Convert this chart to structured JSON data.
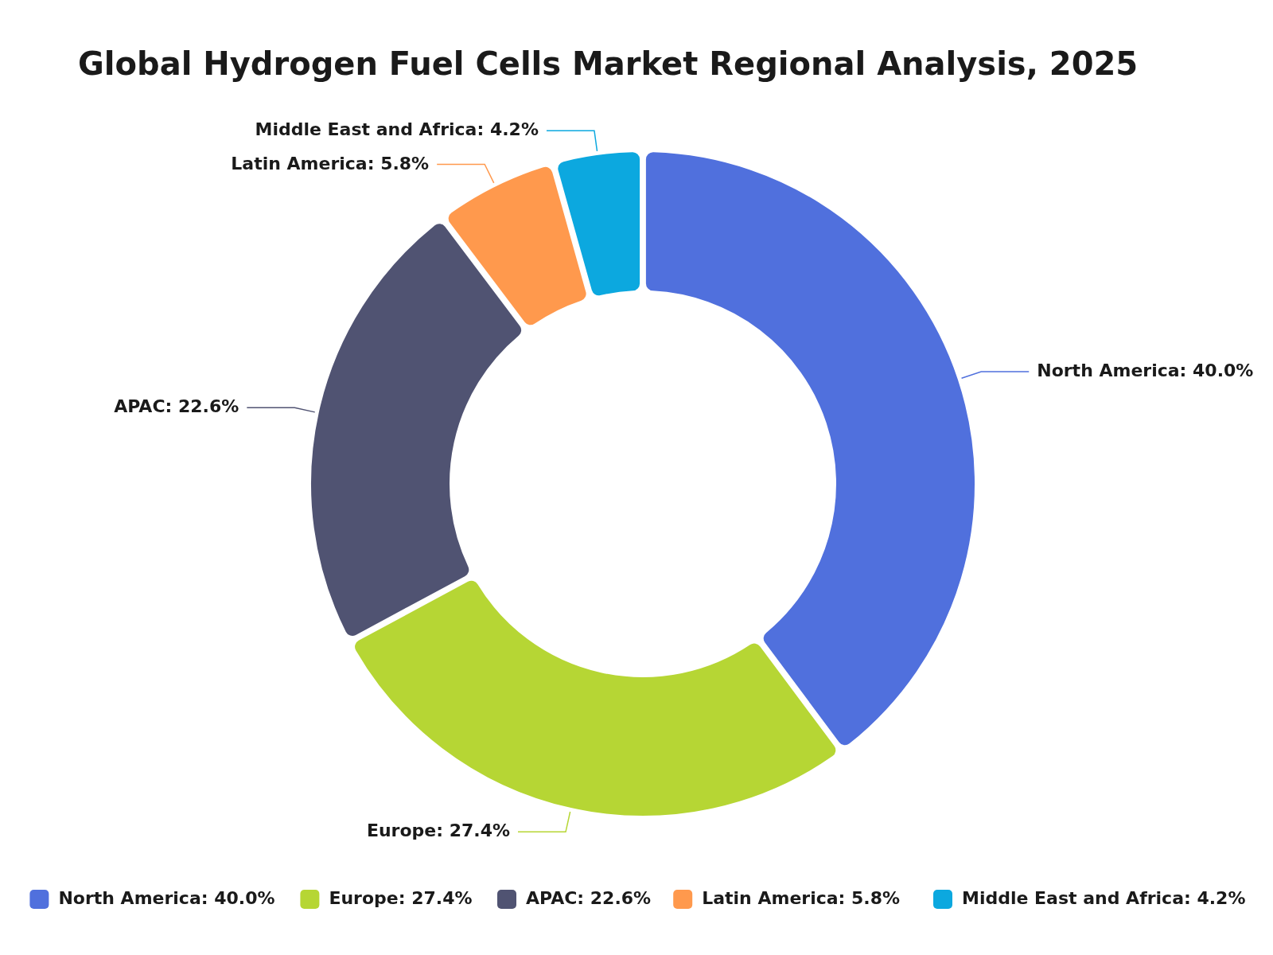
{
  "chart_data": {
    "type": "donut",
    "title": "Global Hydrogen Fuel Cells Market Regional Analysis, 2025",
    "categories": [
      "North America: 40.0%",
      "Europe: 27.4%",
      "APAC: 22.6%",
      "Latin America: 5.8%",
      "Middle East and Africa: 4.2%"
    ],
    "values": [
      40.0,
      27.4,
      22.6,
      5.8,
      4.2
    ],
    "colors": [
      "#5070dd",
      "#b6d634",
      "#505372",
      "#ff994d",
      "#0ca8df"
    ],
    "legend": "bottom"
  }
}
